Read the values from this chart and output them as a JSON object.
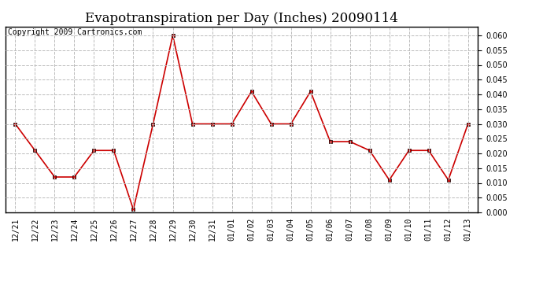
{
  "title": "Evapotranspiration per Day (Inches) 20090114",
  "copyright_text": "Copyright 2009 Cartronics.com",
  "x_labels": [
    "12/21",
    "12/22",
    "12/23",
    "12/24",
    "12/25",
    "12/26",
    "12/27",
    "12/28",
    "12/29",
    "12/30",
    "12/31",
    "01/01",
    "01/02",
    "01/03",
    "01/04",
    "01/05",
    "01/06",
    "01/07",
    "01/08",
    "01/09",
    "01/10",
    "01/11",
    "01/12",
    "01/13"
  ],
  "y_values": [
    0.03,
    0.021,
    0.012,
    0.012,
    0.021,
    0.021,
    0.001,
    0.03,
    0.06,
    0.03,
    0.03,
    0.03,
    0.041,
    0.03,
    0.03,
    0.041,
    0.024,
    0.024,
    0.021,
    0.011,
    0.021,
    0.021,
    0.011,
    0.03
  ],
  "line_color": "#cc0000",
  "marker": "s",
  "marker_color": "#cc0000",
  "marker_size": 3,
  "ylim": [
    0.0,
    0.063
  ],
  "yticks": [
    0.0,
    0.005,
    0.01,
    0.015,
    0.02,
    0.025,
    0.03,
    0.035,
    0.04,
    0.045,
    0.05,
    0.055,
    0.06
  ],
  "grid_color": "#bbbbbb",
  "grid_linestyle": "--",
  "background_color": "#ffffff",
  "title_fontsize": 12,
  "copyright_fontsize": 7,
  "tick_fontsize": 7,
  "linewidth": 1.2
}
